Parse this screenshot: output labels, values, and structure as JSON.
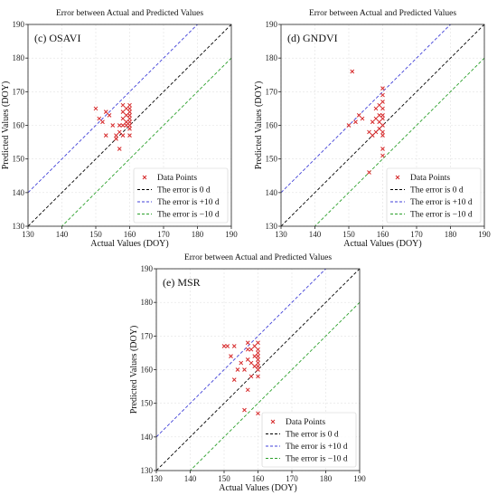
{
  "chart_data": [
    {
      "type": "scatter",
      "title": "Error between Actual and Predicted Values",
      "panel_label": "(c)  OSAVI",
      "xlabel": "Actual Values (DOY)",
      "ylabel": "Predicted Values (DOY)",
      "xlim": [
        130,
        190
      ],
      "ylim": [
        130,
        190
      ],
      "xticks": [
        "130",
        "140",
        "150",
        "160",
        "170",
        "180",
        "190"
      ],
      "yticks": [
        "130",
        "140",
        "150",
        "160",
        "170",
        "180",
        "190"
      ],
      "grid": true,
      "legend_position": "bottom-right",
      "legend": [
        "Data Points",
        "The error is 0 d",
        "The error is +10 d",
        "The error is −10 d"
      ],
      "colors": {
        "points": "#d62728",
        "zero": "#000000",
        "plus": "#4040d8",
        "minus": "#2ca02c"
      },
      "points": [
        [
          150,
          165
        ],
        [
          151,
          162
        ],
        [
          152,
          161
        ],
        [
          153,
          164
        ],
        [
          153,
          157
        ],
        [
          154,
          163
        ],
        [
          155,
          160
        ],
        [
          156,
          157
        ],
        [
          156,
          156
        ],
        [
          157,
          158
        ],
        [
          157,
          153
        ],
        [
          157,
          160
        ],
        [
          158,
          166
        ],
        [
          158,
          164
        ],
        [
          158,
          162
        ],
        [
          158,
          160
        ],
        [
          158,
          157
        ],
        [
          159,
          165
        ],
        [
          159,
          163
        ],
        [
          159,
          161
        ],
        [
          159,
          160
        ],
        [
          160,
          166
        ],
        [
          160,
          165
        ],
        [
          160,
          164
        ],
        [
          160,
          163
        ],
        [
          160,
          162
        ],
        [
          160,
          161
        ],
        [
          160,
          160
        ],
        [
          160,
          159
        ],
        [
          160,
          157
        ]
      ]
    },
    {
      "type": "scatter",
      "title": "Error between Actual and Predicted Values",
      "panel_label": "(d)  GNDVI",
      "xlabel": "Actual Values (DOY)",
      "ylabel": "Predicted Values (DOY)",
      "xlim": [
        130,
        190
      ],
      "ylim": [
        130,
        190
      ],
      "xticks": [
        "130",
        "140",
        "150",
        "160",
        "170",
        "180",
        "190"
      ],
      "yticks": [
        "130",
        "140",
        "150",
        "160",
        "170",
        "180",
        "190"
      ],
      "grid": true,
      "legend_position": "bottom-right",
      "legend": [
        "Data Points",
        "The error is 0 d",
        "The error is +10 d",
        "The error is −10 d"
      ],
      "colors": {
        "points": "#d62728",
        "zero": "#000000",
        "plus": "#4040d8",
        "minus": "#2ca02c"
      },
      "points": [
        [
          150,
          160
        ],
        [
          151,
          176
        ],
        [
          152,
          161
        ],
        [
          153,
          163
        ],
        [
          154,
          162
        ],
        [
          156,
          158
        ],
        [
          156,
          146
        ],
        [
          157,
          161
        ],
        [
          157,
          157
        ],
        [
          158,
          165
        ],
        [
          158,
          162
        ],
        [
          158,
          158
        ],
        [
          159,
          166
        ],
        [
          159,
          163
        ],
        [
          159,
          161
        ],
        [
          159,
          159
        ],
        [
          160,
          171
        ],
        [
          160,
          169
        ],
        [
          160,
          167
        ],
        [
          160,
          165
        ],
        [
          160,
          163
        ],
        [
          160,
          162
        ],
        [
          160,
          160
        ],
        [
          160,
          158
        ],
        [
          160,
          157
        ],
        [
          160,
          153
        ],
        [
          160,
          151
        ]
      ]
    },
    {
      "type": "scatter",
      "title": "Error between Actual and Predicted Values",
      "panel_label": "(e)  MSR",
      "xlabel": "Actual Values (DOY)",
      "ylabel": "Predicted Values (DOY)",
      "xlim": [
        130,
        190
      ],
      "ylim": [
        130,
        190
      ],
      "xticks": [
        "130",
        "140",
        "150",
        "160",
        "170",
        "180",
        "190"
      ],
      "yticks": [
        "130",
        "140",
        "150",
        "160",
        "170",
        "180",
        "190"
      ],
      "grid": true,
      "legend_position": "bottom-right",
      "legend": [
        "Data Points",
        "The error is 0 d",
        "The error is +10 d",
        "The error is −10 d"
      ],
      "colors": {
        "points": "#d62728",
        "zero": "#000000",
        "plus": "#4040d8",
        "minus": "#2ca02c"
      },
      "points": [
        [
          150,
          167
        ],
        [
          151,
          167
        ],
        [
          152,
          164
        ],
        [
          153,
          167
        ],
        [
          153,
          157
        ],
        [
          154,
          160
        ],
        [
          155,
          162
        ],
        [
          156,
          160
        ],
        [
          156,
          148
        ],
        [
          157,
          168
        ],
        [
          157,
          166
        ],
        [
          157,
          163
        ],
        [
          157,
          154
        ],
        [
          158,
          166
        ],
        [
          158,
          162
        ],
        [
          158,
          158
        ],
        [
          159,
          167
        ],
        [
          159,
          164
        ],
        [
          159,
          161
        ],
        [
          160,
          168
        ],
        [
          160,
          166
        ],
        [
          160,
          165
        ],
        [
          160,
          164
        ],
        [
          160,
          163
        ],
        [
          160,
          162
        ],
        [
          160,
          161
        ],
        [
          160,
          160
        ],
        [
          160,
          158
        ],
        [
          160,
          147
        ]
      ]
    }
  ]
}
